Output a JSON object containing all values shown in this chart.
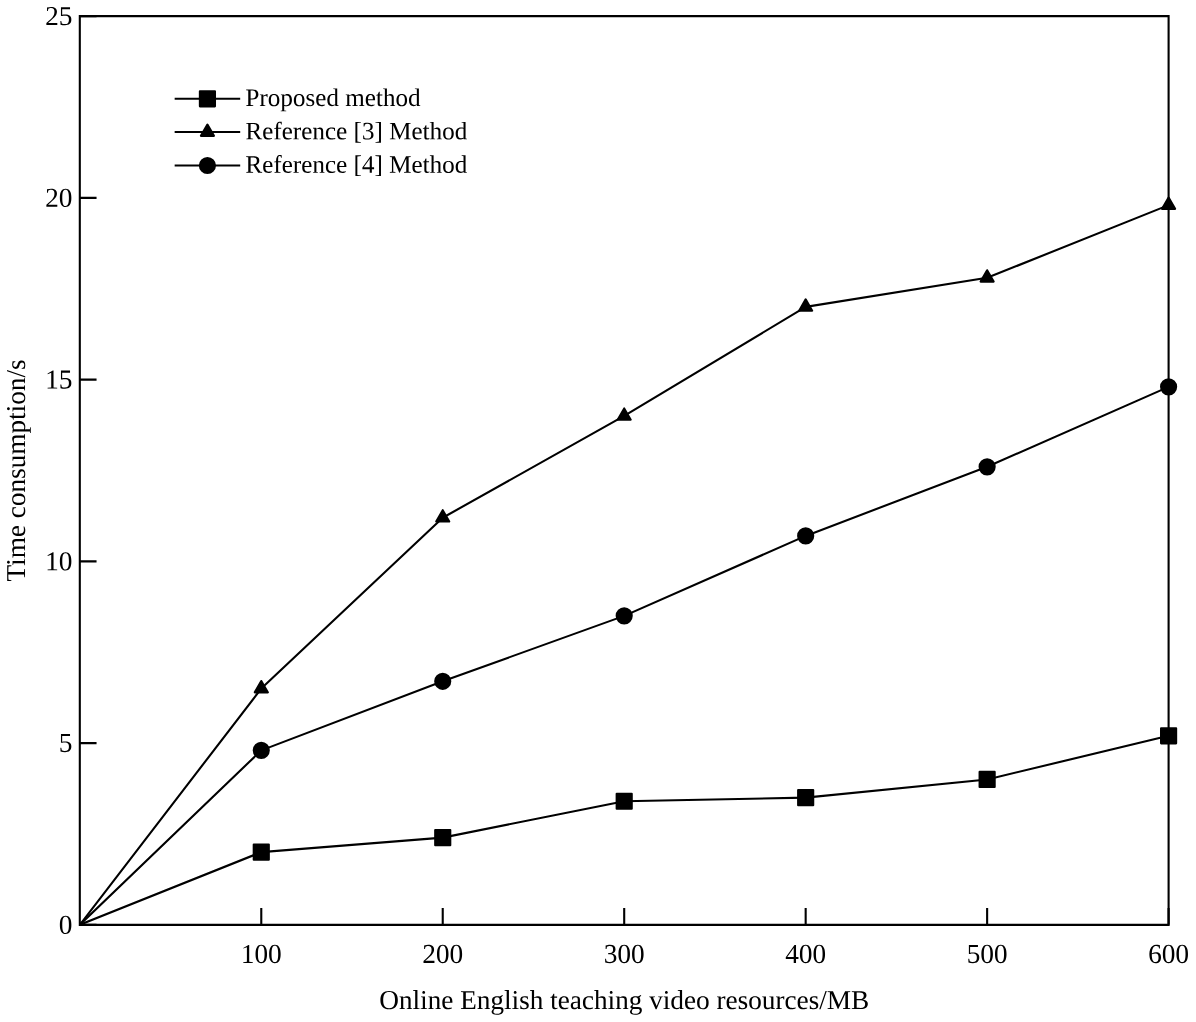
{
  "chart_data": {
    "type": "line",
    "xlabel": "Online English teaching video resources/MB",
    "ylabel": "Time consumption/s",
    "x": [
      0,
      100,
      200,
      300,
      400,
      500,
      600
    ],
    "series": [
      {
        "name": "Proposed method",
        "color": "#000000",
        "marker": "square",
        "values": [
          0,
          2.0,
          2.4,
          3.4,
          3.5,
          4.0,
          5.2
        ]
      },
      {
        "name": "Reference [3] Method",
        "color": "#000000",
        "marker": "triangle",
        "values": [
          0,
          6.5,
          11.2,
          14.0,
          17.0,
          17.8,
          19.8
        ]
      },
      {
        "name": "Reference [4] Method",
        "color": "#000000",
        "marker": "circle",
        "values": [
          0,
          4.8,
          6.7,
          8.5,
          10.7,
          12.6,
          14.8
        ]
      }
    ],
    "xlim": [
      0,
      600
    ],
    "xticks": [
      100,
      200,
      300,
      400,
      500,
      600
    ],
    "ylim": [
      0,
      25
    ],
    "yticks": [
      0,
      5,
      10,
      15,
      20,
      25
    ],
    "legend": "top left",
    "grid": false,
    "line_style": "solid"
  }
}
